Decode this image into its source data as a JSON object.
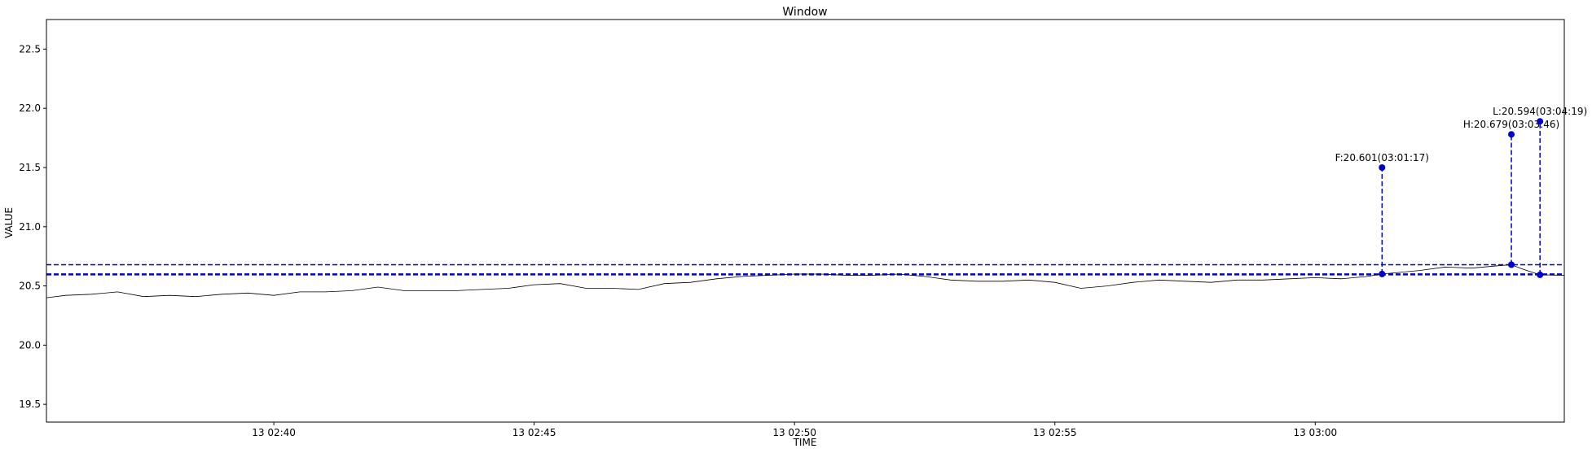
{
  "chart_data": {
    "type": "line",
    "title": "Window",
    "xlabel": "TIME",
    "ylabel": "VALUE",
    "x_range": [
      "02:35:38",
      "03:04:47"
    ],
    "ylim": [
      19.35,
      22.75
    ],
    "grid": false,
    "yticks": [
      19.5,
      20.0,
      20.5,
      21.0,
      21.5,
      22.0,
      22.5
    ],
    "ytick_labels": [
      "19.5",
      "20.0",
      "20.5",
      "21.0",
      "21.5",
      "22.0",
      "22.5"
    ],
    "xticks": [
      "02:40:00",
      "02:45:00",
      "02:50:00",
      "02:55:00",
      "03:00:00"
    ],
    "xtick_labels": [
      "13 02:40",
      "13 02:45",
      "13 02:50",
      "13 02:55",
      "13 03:00"
    ],
    "series": [
      {
        "color": "#000000",
        "x": [
          "02:35:38",
          "02:36:00",
          "02:36:30",
          "02:37:00",
          "02:37:30",
          "02:38:00",
          "02:38:30",
          "02:39:00",
          "02:39:30",
          "02:40:00",
          "02:40:30",
          "02:41:00",
          "02:41:30",
          "02:42:00",
          "02:42:30",
          "02:43:00",
          "02:43:30",
          "02:44:00",
          "02:44:30",
          "02:45:00",
          "02:45:30",
          "02:46:00",
          "02:46:30",
          "02:47:00",
          "02:47:30",
          "02:48:00",
          "02:48:30",
          "02:49:00",
          "02:49:30",
          "02:50:00",
          "02:50:30",
          "02:51:00",
          "02:51:30",
          "02:52:00",
          "02:52:30",
          "02:53:00",
          "02:53:30",
          "02:54:00",
          "02:54:30",
          "02:55:00",
          "02:55:30",
          "02:56:00",
          "02:56:30",
          "02:57:00",
          "02:57:30",
          "02:58:00",
          "02:58:30",
          "02:59:00",
          "02:59:30",
          "03:00:00",
          "03:00:30",
          "03:01:00",
          "03:01:17",
          "03:01:30",
          "03:02:00",
          "03:02:30",
          "03:03:00",
          "03:03:30",
          "03:03:46",
          "03:04:00",
          "03:04:19",
          "03:04:47"
        ],
        "y": [
          20.4,
          20.42,
          20.43,
          20.45,
          20.41,
          20.42,
          20.41,
          20.43,
          20.44,
          20.42,
          20.45,
          20.45,
          20.46,
          20.49,
          20.46,
          20.46,
          20.46,
          20.47,
          20.48,
          20.51,
          20.52,
          20.48,
          20.48,
          20.47,
          20.52,
          20.53,
          20.56,
          20.58,
          20.59,
          20.6,
          20.6,
          20.59,
          20.59,
          20.6,
          20.58,
          20.55,
          20.54,
          20.54,
          20.55,
          20.53,
          20.48,
          20.5,
          20.53,
          20.55,
          20.54,
          20.53,
          20.55,
          20.55,
          20.56,
          20.57,
          20.56,
          20.58,
          20.601,
          20.61,
          20.63,
          20.66,
          20.65,
          20.67,
          20.679,
          20.64,
          20.594,
          20.59
        ]
      }
    ],
    "hlines": [
      {
        "y": 20.679,
        "color": "#0000cc",
        "style": "dashed"
      },
      {
        "y": 20.601,
        "color": "#0000cc",
        "style": "dashed"
      },
      {
        "y": 20.594,
        "color": "#0000cc",
        "style": "dashed"
      }
    ],
    "markers": [
      {
        "x": "03:01:17",
        "y": 20.601,
        "top": 21.5,
        "label": "F:20.601(03:01:17)",
        "color": "#0000cc"
      },
      {
        "x": "03:03:46",
        "y": 20.679,
        "top": 21.78,
        "label": "H:20.679(03:03:46)",
        "color": "#0000cc"
      },
      {
        "x": "03:04:19",
        "y": 20.594,
        "top": 21.89,
        "label": "L:20.594(03:04:19)",
        "color": "#0000cc"
      }
    ]
  }
}
